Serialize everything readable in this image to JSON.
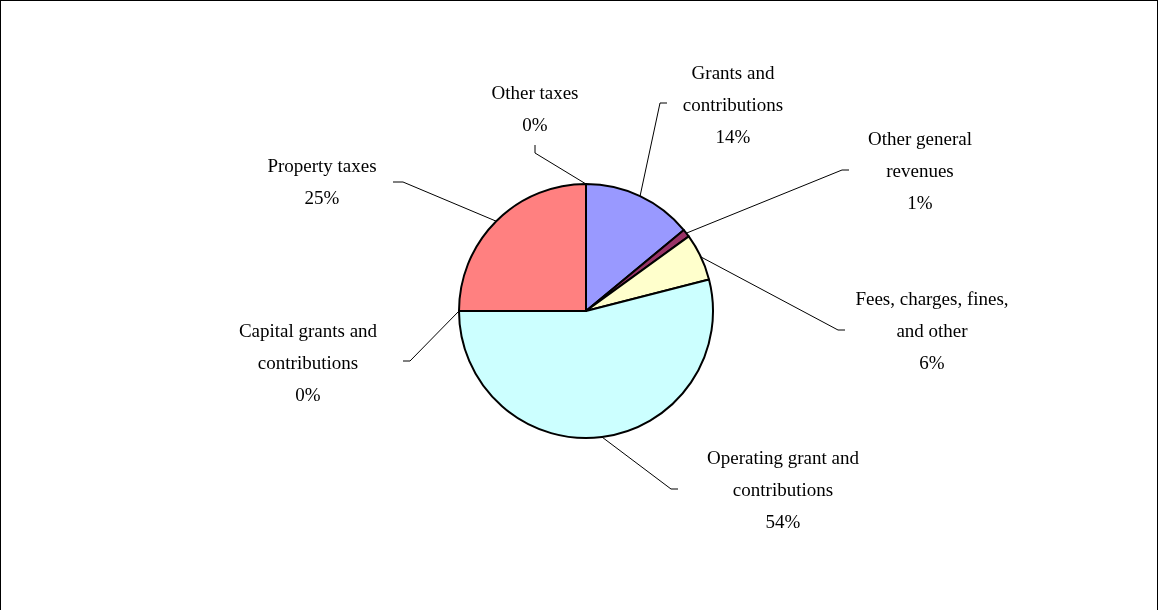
{
  "chart_data": {
    "type": "pie",
    "categories": [
      "Grants and contributions",
      "Other general revenues",
      "Fees, charges, fines, and other",
      "Operating grant and contributions",
      "Capital grants and contributions",
      "Property taxes",
      "Other taxes"
    ],
    "values": [
      14,
      1,
      6,
      54,
      0,
      25,
      0
    ],
    "colors": [
      "#9999ff",
      "#993366",
      "#ffffcc",
      "#ccffff",
      "#660066",
      "#ff8080",
      "#0066cc"
    ],
    "value_labels": [
      "14%",
      "1%",
      "6%",
      "54%",
      "0%",
      "25%",
      "0%"
    ]
  }
}
